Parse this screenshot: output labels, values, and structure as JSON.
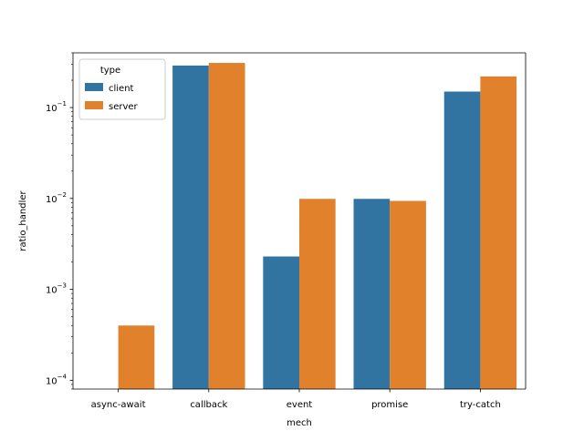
{
  "chart_data": {
    "type": "bar",
    "xlabel": "mech",
    "ylabel": "ratio_handler",
    "yscale": "log",
    "ylim": [
      8e-05,
      0.4
    ],
    "yticks": [
      {
        "value": 0.0001,
        "base": "10",
        "exp": "−4"
      },
      {
        "value": 0.001,
        "base": "10",
        "exp": "−3"
      },
      {
        "value": 0.01,
        "base": "10",
        "exp": "−2"
      },
      {
        "value": 0.1,
        "base": "10",
        "exp": "−1"
      }
    ],
    "categories": [
      "async-await",
      "callback",
      "event",
      "promise",
      "try-catch"
    ],
    "series": [
      {
        "name": "client",
        "color": "#3274a1",
        "values": [
          null,
          0.29,
          0.0023,
          0.0099,
          0.15
        ]
      },
      {
        "name": "server",
        "color": "#e1812c",
        "values": [
          0.0004,
          0.31,
          0.0099,
          0.0094,
          0.22
        ]
      }
    ],
    "legend": {
      "title": "type",
      "placement": "upper-left"
    },
    "grid": false
  }
}
